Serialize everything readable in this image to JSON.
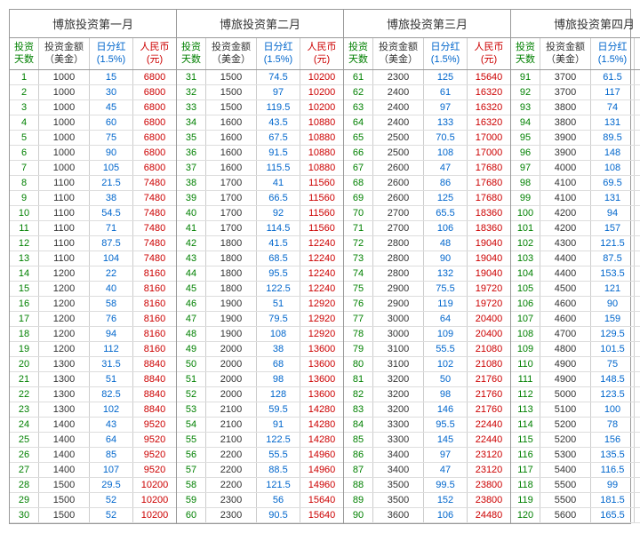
{
  "headers": {
    "col1": "投资天数",
    "col2_line1": "投资金额",
    "col2_line2": "（美金）",
    "col3_line1": "日分红",
    "col3_line2": "(1.5%)",
    "col4_line1": "人民币",
    "col4_line2": "(元)"
  },
  "months": [
    {
      "title": "博旅投资第一月",
      "rows": [
        [
          "1",
          "1000",
          "15",
          "6800"
        ],
        [
          "2",
          "1000",
          "30",
          "6800"
        ],
        [
          "3",
          "1000",
          "45",
          "6800"
        ],
        [
          "4",
          "1000",
          "60",
          "6800"
        ],
        [
          "5",
          "1000",
          "75",
          "6800"
        ],
        [
          "6",
          "1000",
          "90",
          "6800"
        ],
        [
          "7",
          "1000",
          "105",
          "6800"
        ],
        [
          "8",
          "1100",
          "21.5",
          "7480"
        ],
        [
          "9",
          "1100",
          "38",
          "7480"
        ],
        [
          "10",
          "1100",
          "54.5",
          "7480"
        ],
        [
          "11",
          "1100",
          "71",
          "7480"
        ],
        [
          "12",
          "1100",
          "87.5",
          "7480"
        ],
        [
          "13",
          "1100",
          "104",
          "7480"
        ],
        [
          "14",
          "1200",
          "22",
          "8160"
        ],
        [
          "15",
          "1200",
          "40",
          "8160"
        ],
        [
          "16",
          "1200",
          "58",
          "8160"
        ],
        [
          "17",
          "1200",
          "76",
          "8160"
        ],
        [
          "18",
          "1200",
          "94",
          "8160"
        ],
        [
          "19",
          "1200",
          "112",
          "8160"
        ],
        [
          "20",
          "1300",
          "31.5",
          "8840"
        ],
        [
          "21",
          "1300",
          "51",
          "8840"
        ],
        [
          "22",
          "1300",
          "82.5",
          "8840"
        ],
        [
          "23",
          "1300",
          "102",
          "8840"
        ],
        [
          "24",
          "1400",
          "43",
          "9520"
        ],
        [
          "25",
          "1400",
          "64",
          "9520"
        ],
        [
          "26",
          "1400",
          "85",
          "9520"
        ],
        [
          "27",
          "1400",
          "107",
          "9520"
        ],
        [
          "28",
          "1500",
          "29.5",
          "10200"
        ],
        [
          "29",
          "1500",
          "52",
          "10200"
        ],
        [
          "30",
          "1500",
          "52",
          "10200"
        ]
      ]
    },
    {
      "title": "博旅投资第二月",
      "rows": [
        [
          "31",
          "1500",
          "74.5",
          "10200"
        ],
        [
          "32",
          "1500",
          "97",
          "10200"
        ],
        [
          "33",
          "1500",
          "119.5",
          "10200"
        ],
        [
          "34",
          "1600",
          "43.5",
          "10880"
        ],
        [
          "35",
          "1600",
          "67.5",
          "10880"
        ],
        [
          "36",
          "1600",
          "91.5",
          "10880"
        ],
        [
          "37",
          "1600",
          "115.5",
          "10880"
        ],
        [
          "38",
          "1700",
          "41",
          "11560"
        ],
        [
          "39",
          "1700",
          "66.5",
          "11560"
        ],
        [
          "40",
          "1700",
          "92",
          "11560"
        ],
        [
          "41",
          "1700",
          "114.5",
          "11560"
        ],
        [
          "42",
          "1800",
          "41.5",
          "12240"
        ],
        [
          "43",
          "1800",
          "68.5",
          "12240"
        ],
        [
          "44",
          "1800",
          "95.5",
          "12240"
        ],
        [
          "45",
          "1800",
          "122.5",
          "12240"
        ],
        [
          "46",
          "1900",
          "51",
          "12920"
        ],
        [
          "47",
          "1900",
          "79.5",
          "12920"
        ],
        [
          "48",
          "1900",
          "108",
          "12920"
        ],
        [
          "49",
          "2000",
          "38",
          "13600"
        ],
        [
          "50",
          "2000",
          "68",
          "13600"
        ],
        [
          "51",
          "2000",
          "98",
          "13600"
        ],
        [
          "52",
          "2000",
          "128",
          "13600"
        ],
        [
          "53",
          "2100",
          "59.5",
          "14280"
        ],
        [
          "54",
          "2100",
          "91",
          "14280"
        ],
        [
          "55",
          "2100",
          "122.5",
          "14280"
        ],
        [
          "56",
          "2200",
          "55.5",
          "14960"
        ],
        [
          "57",
          "2200",
          "88.5",
          "14960"
        ],
        [
          "58",
          "2200",
          "121.5",
          "14960"
        ],
        [
          "59",
          "2300",
          "56",
          "15640"
        ],
        [
          "60",
          "2300",
          "90.5",
          "15640"
        ]
      ]
    },
    {
      "title": "博旅投资第三月",
      "rows": [
        [
          "61",
          "2300",
          "125",
          "15640"
        ],
        [
          "62",
          "2400",
          "61",
          "16320"
        ],
        [
          "63",
          "2400",
          "97",
          "16320"
        ],
        [
          "64",
          "2400",
          "133",
          "16320"
        ],
        [
          "65",
          "2500",
          "70.5",
          "17000"
        ],
        [
          "66",
          "2500",
          "108",
          "17000"
        ],
        [
          "67",
          "2600",
          "47",
          "17680"
        ],
        [
          "68",
          "2600",
          "86",
          "17680"
        ],
        [
          "69",
          "2600",
          "125",
          "17680"
        ],
        [
          "70",
          "2700",
          "65.5",
          "18360"
        ],
        [
          "71",
          "2700",
          "106",
          "18360"
        ],
        [
          "72",
          "2800",
          "48",
          "19040"
        ],
        [
          "73",
          "2800",
          "90",
          "19040"
        ],
        [
          "74",
          "2800",
          "132",
          "19040"
        ],
        [
          "75",
          "2900",
          "75.5",
          "19720"
        ],
        [
          "76",
          "2900",
          "119",
          "19720"
        ],
        [
          "77",
          "3000",
          "64",
          "20400"
        ],
        [
          "78",
          "3000",
          "109",
          "20400"
        ],
        [
          "79",
          "3100",
          "55.5",
          "21080"
        ],
        [
          "80",
          "3100",
          "102",
          "21080"
        ],
        [
          "81",
          "3200",
          "50",
          "21760"
        ],
        [
          "82",
          "3200",
          "98",
          "21760"
        ],
        [
          "83",
          "3200",
          "146",
          "21760"
        ],
        [
          "84",
          "3300",
          "95.5",
          "22440"
        ],
        [
          "85",
          "3300",
          "145",
          "22440"
        ],
        [
          "86",
          "3400",
          "97",
          "23120"
        ],
        [
          "87",
          "3400",
          "47",
          "23120"
        ],
        [
          "88",
          "3500",
          "99.5",
          "23800"
        ],
        [
          "89",
          "3500",
          "152",
          "23800"
        ],
        [
          "90",
          "3600",
          "106",
          "24480"
        ]
      ]
    },
    {
      "title": "博旅投资第四月",
      "rows": [
        [
          "91",
          "3700",
          "61.5",
          "25160"
        ],
        [
          "92",
          "3700",
          "117",
          "25160"
        ],
        [
          "93",
          "3800",
          "74",
          "25840"
        ],
        [
          "94",
          "3800",
          "131",
          "25840"
        ],
        [
          "95",
          "3900",
          "89.5",
          "26520"
        ],
        [
          "96",
          "3900",
          "148",
          "26520"
        ],
        [
          "97",
          "4000",
          "108",
          "27200"
        ],
        [
          "98",
          "4100",
          "69.5",
          "27880"
        ],
        [
          "99",
          "4100",
          "131",
          "27880"
        ],
        [
          "100",
          "4200",
          "94",
          "28560"
        ],
        [
          "101",
          "4200",
          "157",
          "28560"
        ],
        [
          "102",
          "4300",
          "121.5",
          "29240"
        ],
        [
          "103",
          "4400",
          "87.5",
          "29920"
        ],
        [
          "104",
          "4400",
          "153.5",
          "29920"
        ],
        [
          "105",
          "4500",
          "121",
          "30600"
        ],
        [
          "106",
          "4600",
          "90",
          "31280"
        ],
        [
          "107",
          "4600",
          "159",
          "31280"
        ],
        [
          "108",
          "4700",
          "129.5",
          "31960"
        ],
        [
          "109",
          "4800",
          "101.5",
          "32640"
        ],
        [
          "110",
          "4900",
          "75",
          "33320"
        ],
        [
          "111",
          "4900",
          "148.5",
          "33320"
        ],
        [
          "112",
          "5000",
          "123.5",
          "34000"
        ],
        [
          "113",
          "5100",
          "100",
          "34680"
        ],
        [
          "114",
          "5200",
          "78",
          "35360"
        ],
        [
          "115",
          "5200",
          "156",
          "35360"
        ],
        [
          "116",
          "5300",
          "135.5",
          "36040"
        ],
        [
          "117",
          "5400",
          "116.5",
          "36720"
        ],
        [
          "118",
          "5500",
          "99",
          "37400"
        ],
        [
          "119",
          "5500",
          "181.5",
          "37400"
        ],
        [
          "120",
          "5600",
          "165.5",
          "38080"
        ]
      ]
    }
  ]
}
